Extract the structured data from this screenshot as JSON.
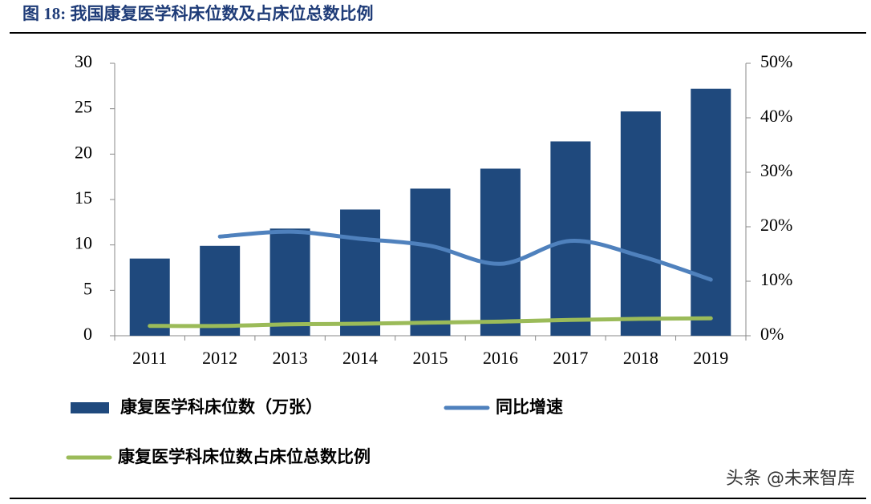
{
  "chart_data": {
    "type": "bar_line",
    "title": "图 18:  我国康复医学科床位数及占床位总数比例",
    "categories": [
      "2011",
      "2012",
      "2013",
      "2014",
      "2015",
      "2016",
      "2017",
      "2018",
      "2019"
    ],
    "series": [
      {
        "name": "康复医学科床位数（万张）",
        "type": "bar",
        "color": "#1f497d",
        "values": [
          8.5,
          9.9,
          11.8,
          13.9,
          16.2,
          18.4,
          21.4,
          24.7,
          27.2
        ]
      },
      {
        "name": "同比增速",
        "type": "line",
        "axis": "y2",
        "color": "#4f81bd",
        "values": [
          null,
          18.2,
          19.1,
          17.8,
          16.5,
          13.2,
          17.4,
          14.6,
          10.3
        ]
      },
      {
        "name": "康复医学科床位数占床位总数比例",
        "type": "line",
        "axis": "y2",
        "color": "#9bbb59",
        "values": [
          1.8,
          1.8,
          2.1,
          2.2,
          2.4,
          2.6,
          2.9,
          3.1,
          3.2
        ]
      }
    ],
    "ylim": [
      0,
      30
    ],
    "yticks": [
      0,
      5,
      10,
      15,
      20,
      25,
      30
    ],
    "y2lim": [
      0,
      50
    ],
    "y2ticks": [
      {
        "value": 0,
        "label": "0%"
      },
      {
        "value": 10,
        "label": "10%"
      },
      {
        "value": 20,
        "label": "20%"
      },
      {
        "value": 30,
        "label": "30%"
      },
      {
        "value": 40,
        "label": "40%"
      },
      {
        "value": 50,
        "label": "50%"
      }
    ],
    "legend": "bottom",
    "grid": false,
    "watermark": "头条 @未来智库"
  }
}
